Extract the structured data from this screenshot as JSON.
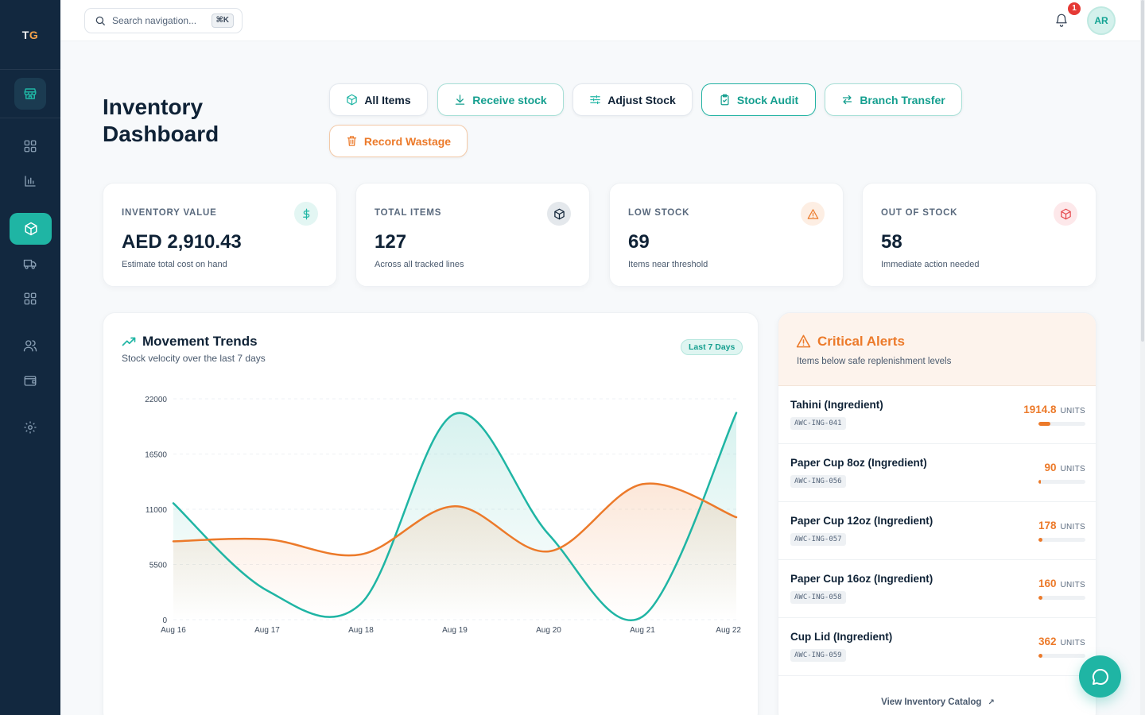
{
  "brand": {
    "logo_main": "T",
    "logo_accent": "G"
  },
  "topbar": {
    "search_placeholder": "Search navigation...",
    "shortcut": "⌘K",
    "notification_count": "1",
    "avatar_initials": "AR"
  },
  "sidebar": {
    "icons": [
      "store-icon",
      "dashboard-grid-icon",
      "bar-chart-icon",
      "box-icon",
      "truck-icon",
      "apps-grid-icon",
      "users-icon",
      "wallet-icon",
      "settings-icon"
    ],
    "active": "box-icon"
  },
  "header": {
    "title": "Inventory Dashboard",
    "actions": [
      {
        "label": "All Items",
        "icon": "box-icon"
      },
      {
        "label": "Receive stock",
        "icon": "download-icon"
      },
      {
        "label": "Adjust Stock",
        "icon": "sliders-icon"
      },
      {
        "label": "Stock Audit",
        "icon": "clipboard-check-icon"
      },
      {
        "label": "Branch Transfer",
        "icon": "transfer-icon"
      },
      {
        "label": "Record Wastage",
        "icon": "trash-icon"
      }
    ]
  },
  "stats": [
    {
      "label": "INVENTORY VALUE",
      "value": "AED 2,910.43",
      "sub": "Estimate total cost on hand",
      "icon": "dollar-icon",
      "color": "#1fb5a4"
    },
    {
      "label": "TOTAL ITEMS",
      "value": "127",
      "sub": "Across all tracked lines",
      "icon": "box-icon",
      "color": "#0f2236"
    },
    {
      "label": "LOW STOCK",
      "value": "69",
      "sub": "Items near threshold",
      "icon": "warning-icon",
      "color": "#ec7a2a"
    },
    {
      "label": "OUT OF STOCK",
      "value": "58",
      "sub": "Immediate action needed",
      "icon": "box-alert-icon",
      "color": "#e5484d"
    }
  ],
  "movement": {
    "title": "Movement Trends",
    "subtitle": "Stock velocity over the last 7 days",
    "range_label": "Last 7 Days"
  },
  "chart_data": {
    "type": "area",
    "categories": [
      "Aug 16",
      "Aug 17",
      "Aug 18",
      "Aug 19",
      "Aug 20",
      "Aug 21",
      "Aug 22"
    ],
    "y_ticks": [
      0,
      5500,
      11000,
      16500,
      22000
    ],
    "ylim": [
      0,
      22000
    ],
    "grid": true,
    "series": [
      {
        "color": "#1fb5a4",
        "values": [
          11600,
          2900,
          1600,
          20500,
          8500,
          300,
          20600
        ]
      },
      {
        "color": "#ec7a2a",
        "values": [
          7800,
          8000,
          6500,
          11300,
          6800,
          13500,
          10200
        ]
      }
    ]
  },
  "alerts": {
    "title": "Critical Alerts",
    "subtitle": "Items below safe replenishment levels",
    "items": [
      {
        "name": "Tahini (Ingredient)",
        "sku": "AWC-ING-041",
        "qty": "1914.8",
        "unit": "UNITS",
        "level": 0.25
      },
      {
        "name": "Paper Cup 8oz (Ingredient)",
        "sku": "AWC-ING-056",
        "qty": "90",
        "unit": "UNITS",
        "level": 0.05
      },
      {
        "name": "Paper Cup 12oz (Ingredient)",
        "sku": "AWC-ING-057",
        "qty": "178",
        "unit": "UNITS",
        "level": 0.08
      },
      {
        "name": "Paper Cup 16oz (Ingredient)",
        "sku": "AWC-ING-058",
        "qty": "160",
        "unit": "UNITS",
        "level": 0.08
      },
      {
        "name": "Cup Lid (Ingredient)",
        "sku": "AWC-ING-059",
        "qty": "362",
        "unit": "UNITS",
        "level": 0.08
      }
    ],
    "footer_link": "View Inventory Catalog"
  }
}
